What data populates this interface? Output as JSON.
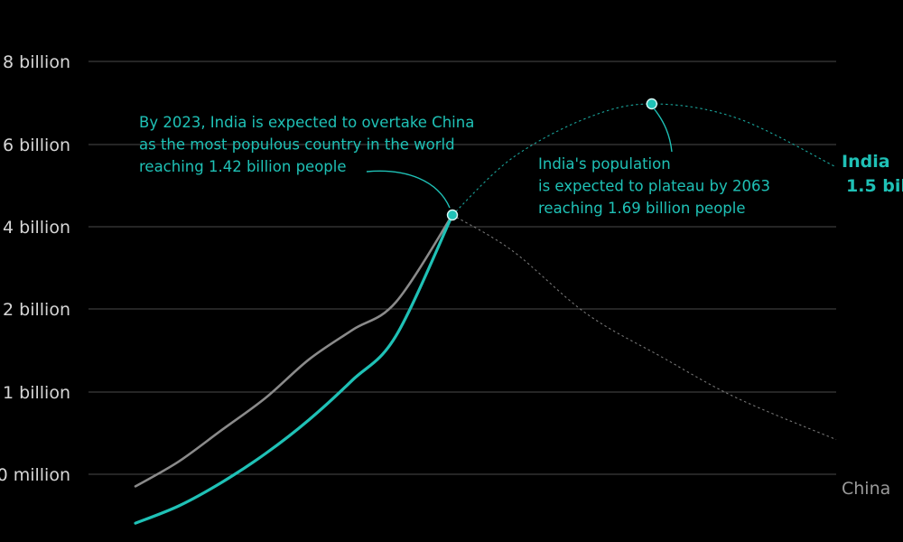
{
  "colors": {
    "background": "#000000",
    "india": "#1fc1b6",
    "china": "#8a8a8a",
    "grid": "#4a4a4a",
    "tick_text": "#d6d6d6"
  },
  "chart_data": {
    "type": "line",
    "title": "",
    "xlabel": "",
    "ylabel": "",
    "grid": true,
    "ytick_labels": [
      "0 million",
      "1 billion",
      "2 billion",
      "4 billion",
      "6 billion",
      "8 billion"
    ],
    "series": [
      {
        "name": "India",
        "label_lines": [
          "India",
          "1.5 bil"
        ],
        "historical": [
          {
            "x": 1950,
            "y": 0.37
          },
          {
            "x": 1960,
            "y": 0.45
          },
          {
            "x": 1970,
            "y": 0.56
          },
          {
            "x": 1980,
            "y": 0.7
          },
          {
            "x": 1990,
            "y": 0.87
          },
          {
            "x": 2000,
            "y": 1.06
          },
          {
            "x": 2010,
            "y": 1.24
          },
          {
            "x": 2023,
            "y": 1.42
          }
        ],
        "projection": [
          {
            "x": 2023,
            "y": 1.42
          },
          {
            "x": 2035,
            "y": 1.55
          },
          {
            "x": 2050,
            "y": 1.65
          },
          {
            "x": 2063,
            "y": 1.69
          },
          {
            "x": 2080,
            "y": 1.65
          },
          {
            "x": 2100,
            "y": 1.53
          }
        ]
      },
      {
        "name": "China",
        "label_lines": [
          "China"
        ],
        "historical": [
          {
            "x": 1950,
            "y": 0.54
          },
          {
            "x": 1960,
            "y": 0.66
          },
          {
            "x": 1970,
            "y": 0.82
          },
          {
            "x": 1980,
            "y": 0.98
          },
          {
            "x": 1990,
            "y": 1.15
          },
          {
            "x": 2000,
            "y": 1.26
          },
          {
            "x": 2010,
            "y": 1.34
          },
          {
            "x": 2023,
            "y": 1.42
          }
        ],
        "projection": [
          {
            "x": 2023,
            "y": 1.42
          },
          {
            "x": 2035,
            "y": 1.39
          },
          {
            "x": 2050,
            "y": 1.31
          },
          {
            "x": 2065,
            "y": 1.16
          },
          {
            "x": 2080,
            "y": 0.98
          },
          {
            "x": 2100,
            "y": 0.77
          }
        ]
      }
    ],
    "highlights": [
      {
        "series": "India",
        "x": 2023,
        "y": 1.42
      },
      {
        "series": "India",
        "x": 2063,
        "y": 1.69
      }
    ],
    "annotations": [
      {
        "id": "overtake",
        "target_x": 2023,
        "lines": [
          "By 2023, India is expected to overtake China",
          "as the most populous country in the world",
          "reaching 1.42 billion people"
        ]
      },
      {
        "id": "plateau",
        "target_x": 2063,
        "lines": [
          "India's population",
          "is expected to plateau by 2063",
          "reaching 1.69 billion people"
        ]
      }
    ]
  }
}
